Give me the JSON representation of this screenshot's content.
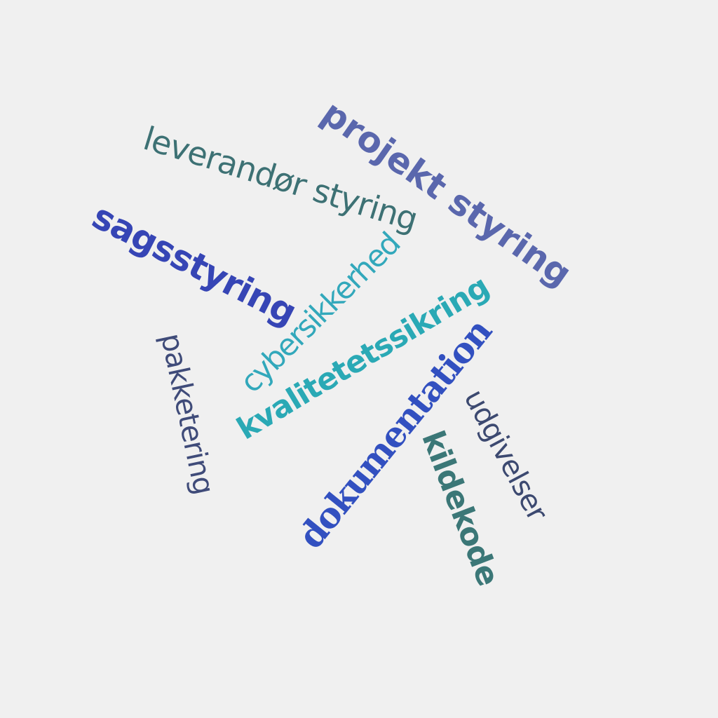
{
  "words": {
    "projekt_styring": {
      "text": "projekt styring",
      "color": "#5a67ad"
    },
    "leverandor_styring": {
      "text": "leverandør styring",
      "color": "#3d7174"
    },
    "sagsstyring": {
      "text": "sagsstyring",
      "color": "#3645b5"
    },
    "cybersikkerhed": {
      "text": "cybersikkerhed",
      "color": "#32a8bb"
    },
    "kvalitetetssikring": {
      "text": "kvalitetetssikring",
      "color": "#2aa9b5"
    },
    "pakketering": {
      "text": "pakketering",
      "color": "#3f4b79"
    },
    "dokumentation": {
      "text": "dokumentation",
      "color": "#3250c0"
    },
    "udgivelser": {
      "text": "udgivelser",
      "color": "#3c4970"
    },
    "kildekode": {
      "text": "kildekode",
      "color": "#3b7777"
    }
  }
}
